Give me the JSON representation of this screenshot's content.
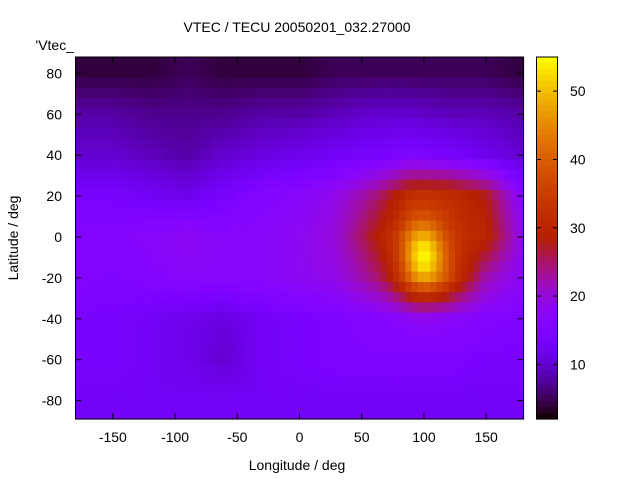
{
  "chart_data": {
    "type": "heatmap",
    "title": "VTEC / TECU 20050201_032.27000",
    "xlabel": "Longitude / deg",
    "ylabel": "Latitude / deg",
    "key_label": "'Vtec_",
    "xlim": [
      -180,
      180
    ],
    "ylim": [
      -89,
      88
    ],
    "xticks": [
      -150,
      -100,
      -50,
      0,
      50,
      100,
      150
    ],
    "yticks": [
      80,
      60,
      40,
      20,
      0,
      -20,
      -40,
      -60,
      -80
    ],
    "colorbar": {
      "range": [
        2,
        55
      ],
      "ticks": [
        10,
        20,
        30,
        40,
        50
      ]
    },
    "grid": false,
    "lon": [
      -180,
      -150,
      -120,
      -90,
      -60,
      -30,
      0,
      30,
      60,
      90,
      120,
      150,
      180
    ],
    "lat": [
      80,
      60,
      40,
      20,
      0,
      -20,
      -40,
      -60,
      -80
    ],
    "values": [
      [
        4,
        4,
        4,
        5,
        4,
        4,
        4,
        5,
        5,
        5,
        5,
        5,
        4
      ],
      [
        8,
        8,
        7,
        7,
        7,
        8,
        8,
        9,
        10,
        10,
        9,
        9,
        8
      ],
      [
        10,
        10,
        9,
        8,
        10,
        11,
        12,
        13,
        14,
        15,
        14,
        12,
        10
      ],
      [
        14,
        14,
        13,
        12,
        14,
        16,
        17,
        19,
        24,
        32,
        32,
        28,
        16
      ],
      [
        16,
        16,
        17,
        18,
        17,
        17,
        18,
        20,
        28,
        35,
        33,
        30,
        18
      ],
      [
        16,
        15,
        16,
        17,
        17,
        17,
        18,
        19,
        24,
        32,
        34,
        22,
        17
      ],
      [
        14,
        14,
        13,
        12,
        11,
        13,
        14,
        15,
        16,
        17,
        17,
        16,
        15
      ],
      [
        14,
        14,
        13,
        12,
        10,
        13,
        14,
        15,
        15,
        15,
        15,
        14,
        14
      ],
      [
        13,
        13,
        13,
        13,
        13,
        13,
        13,
        13,
        13,
        13,
        13,
        13,
        13
      ]
    ],
    "hotspot": {
      "lon": 100,
      "lat": -10,
      "value": 55
    }
  }
}
